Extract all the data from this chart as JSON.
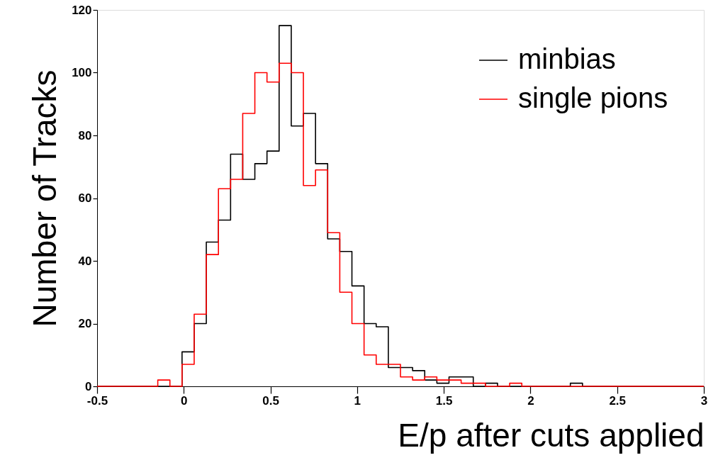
{
  "chart_data": {
    "type": "histogram",
    "xlabel": "E/p after cuts applied",
    "ylabel": "Number of Tracks",
    "bins": [
      -0.5,
      -0.43,
      -0.36,
      -0.29,
      -0.22,
      -0.15,
      -0.08,
      -0.01,
      0.06,
      0.13,
      0.2,
      0.27,
      0.34,
      0.41,
      0.48,
      0.55,
      0.62,
      0.69,
      0.76,
      0.83,
      0.9,
      0.97,
      1.04,
      1.11,
      1.18,
      1.25,
      1.32,
      1.39,
      1.46,
      1.53,
      1.6,
      1.67,
      1.74,
      1.81,
      1.88,
      1.95,
      2.02,
      2.09,
      2.16,
      2.23,
      2.3,
      2.37,
      2.44,
      2.51,
      2.58,
      2.65,
      2.72,
      2.79,
      2.86,
      2.93,
      3.0
    ],
    "series": [
      {
        "name": "minbias",
        "color": "#000000",
        "values": [
          0,
          0,
          0,
          0,
          0,
          0,
          0,
          11,
          20,
          46,
          53,
          74,
          66,
          71,
          75,
          115,
          83,
          87,
          71,
          47,
          43,
          32,
          20,
          19,
          6,
          6,
          5,
          2,
          1,
          3,
          3,
          0,
          1,
          0,
          0,
          0,
          0,
          0,
          0,
          1,
          0,
          0,
          0,
          0,
          0,
          0,
          0,
          0,
          0,
          0
        ]
      },
      {
        "name": "single pions",
        "color": "#ff0000",
        "values": [
          0,
          0,
          0,
          0,
          0,
          2,
          0,
          7,
          23,
          42,
          63,
          66,
          87,
          100,
          97,
          103,
          100,
          64,
          69,
          49,
          30,
          20,
          10,
          7,
          7,
          3,
          2,
          3,
          2,
          2,
          1,
          1,
          0,
          0,
          1,
          0,
          0,
          0,
          0,
          0,
          0,
          0,
          0,
          0,
          0,
          0,
          0,
          0,
          0,
          0
        ]
      }
    ],
    "xlim": [
      -0.5,
      3
    ],
    "xticks": [
      -0.5,
      0,
      0.5,
      1,
      1.5,
      2,
      2.5,
      3
    ],
    "ylim": [
      0,
      120
    ],
    "yticks": [
      0,
      20,
      40,
      60,
      80,
      100,
      120
    ],
    "grid": false,
    "legend": "top right"
  }
}
